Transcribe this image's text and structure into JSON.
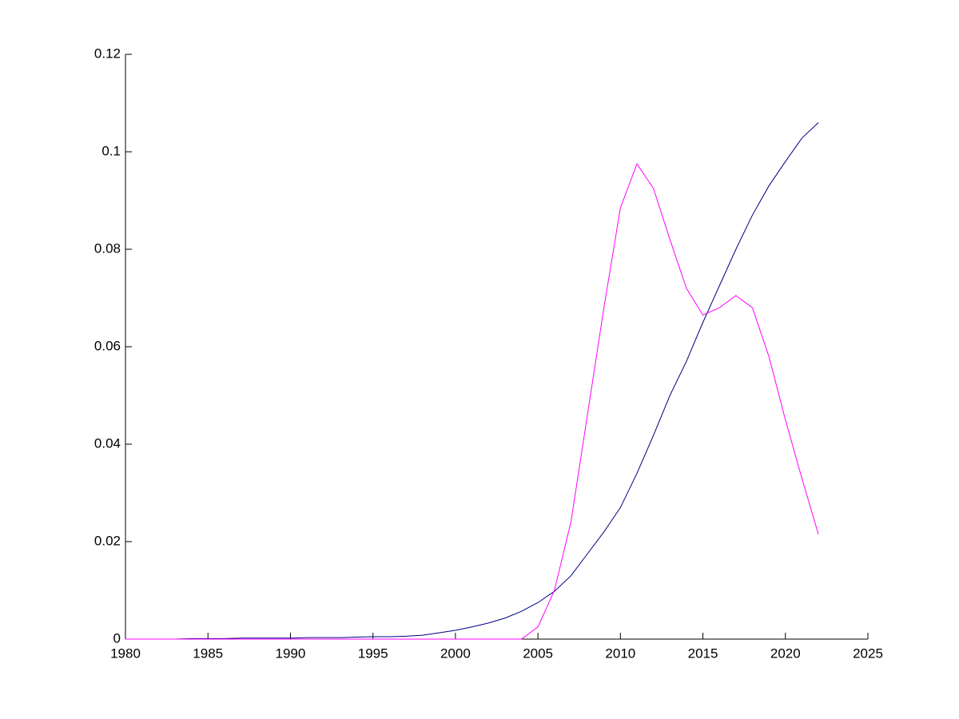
{
  "chart_data": {
    "type": "line",
    "x": [
      1980,
      1981,
      1982,
      1983,
      1984,
      1985,
      1986,
      1987,
      1988,
      1989,
      1990,
      1991,
      1992,
      1993,
      1994,
      1995,
      1996,
      1997,
      1998,
      1999,
      2000,
      2001,
      2002,
      2003,
      2004,
      2005,
      2006,
      2007,
      2008,
      2009,
      2010,
      2011,
      2012,
      2013,
      2014,
      2015,
      2016,
      2017,
      2018,
      2019,
      2020,
      2021,
      2022
    ],
    "series": [
      {
        "color": "#000080",
        "values": [
          0,
          0,
          0,
          0,
          0.0001,
          0.0001,
          0.0001,
          0.0002,
          0.0002,
          0.0002,
          0.0002,
          0.0003,
          0.0003,
          0.0003,
          0.0004,
          0.0005,
          0.0005,
          0.0006,
          0.0008,
          0.0013,
          0.0018,
          0.0025,
          0.0033,
          0.0043,
          0.0057,
          0.0075,
          0.0098,
          0.013,
          0.0175,
          0.022,
          0.027,
          0.034,
          0.0418,
          0.05,
          0.057,
          0.065,
          0.0725,
          0.08,
          0.087,
          0.093,
          0.098,
          0.1028,
          0.106
        ]
      },
      {
        "color": "#ff00ff",
        "values": [
          0,
          0,
          0,
          0,
          0,
          0,
          0,
          0,
          0,
          0,
          0,
          0,
          0,
          0,
          0,
          0,
          0,
          0,
          0,
          0,
          0,
          0,
          0,
          0,
          0,
          0.0025,
          0.01,
          0.024,
          0.046,
          0.068,
          0.0885,
          0.0975,
          0.0925,
          0.082,
          0.072,
          0.0665,
          0.068,
          0.0705,
          0.068,
          0.058,
          0.045,
          0.033,
          0.0215
        ]
      }
    ],
    "xlim": [
      1980,
      2025
    ],
    "xticks": [
      1980,
      1985,
      1990,
      1995,
      2000,
      2005,
      2010,
      2015,
      2020,
      2025
    ],
    "ylim": [
      0,
      0.12
    ],
    "yticks": [
      0,
      0.02,
      0.04,
      0.06,
      0.08,
      0.1,
      0.12
    ]
  }
}
